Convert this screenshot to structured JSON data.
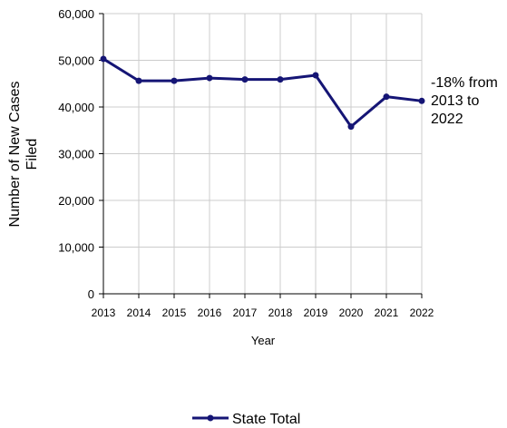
{
  "chart_data": {
    "type": "line",
    "x": [
      "2013",
      "2014",
      "2015",
      "2016",
      "2017",
      "2018",
      "2019",
      "2020",
      "2021",
      "2022"
    ],
    "x_tick_labels": [
      "2013",
      "2014",
      "2015",
      "2016",
      "2017",
      "2018",
      "2019",
      "2020",
      "2021",
      "2022"
    ],
    "series": [
      {
        "name": "State Total",
        "values": [
          50300,
          45600,
          45600,
          46200,
          45900,
          45900,
          46800,
          35800,
          42200,
          41300
        ]
      }
    ],
    "xlabel": "Year",
    "ylabel": "Number of New Cases Filed",
    "ylim": [
      0,
      60000
    ],
    "y_ticks": [
      0,
      10000,
      20000,
      30000,
      40000,
      50000,
      60000
    ],
    "y_tick_labels": [
      "0",
      "10,000",
      "20,000",
      "30,000",
      "40,000",
      "50,000",
      "60,000"
    ],
    "grid": true,
    "legend": "bottom",
    "annotation": {
      "lines": [
        "-18% from",
        "2013 to",
        "2022"
      ]
    },
    "colors": {
      "series": "#151575",
      "grid": "#cccccc",
      "axis": "#000000"
    }
  }
}
